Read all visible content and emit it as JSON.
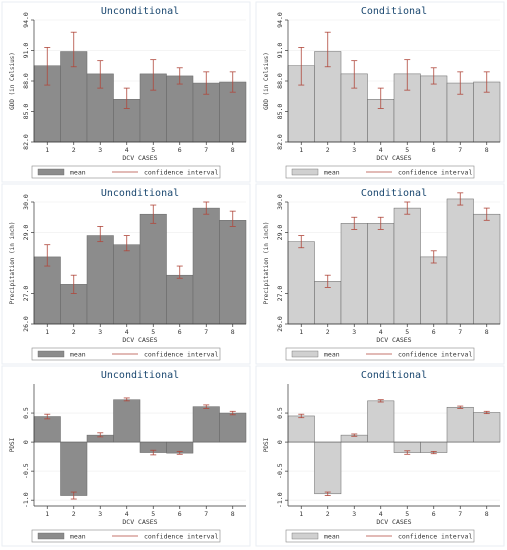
{
  "legend": {
    "mean_label": "mean",
    "ci_label": "confidence interval"
  },
  "colors": {
    "unconditional_bar": "#8c8c8c",
    "conditional_bar": "#d0d0d0",
    "ci": "#b0483c",
    "title": "#1a476f"
  },
  "chart_data": [
    {
      "type": "bar",
      "title": "Unconditional",
      "xlabel": "DCV CASES",
      "ylabel": "GDD (in Celsius)",
      "categories": [
        "1",
        "2",
        "3",
        "4",
        "5",
        "6",
        "7",
        "8"
      ],
      "values": [
        89.5,
        90.9,
        88.7,
        86.2,
        88.7,
        88.5,
        87.8,
        87.9
      ],
      "ci_low": [
        87.6,
        89.4,
        87.3,
        85.3,
        87.1,
        87.7,
        86.7,
        86.9
      ],
      "ci_high": [
        91.3,
        92.8,
        90.0,
        87.3,
        90.1,
        89.3,
        88.9,
        88.9
      ],
      "ylim": [
        82.0,
        94.0
      ],
      "yticks": [
        "94.0",
        "91.0",
        "88.0",
        "85.0",
        "82.0"
      ],
      "ytick_values": [
        94,
        91,
        88,
        85,
        82
      ]
    },
    {
      "type": "bar",
      "title": "Conditional",
      "xlabel": "DCV CASES",
      "ylabel": "GDD (in Celsius)",
      "categories": [
        "1",
        "2",
        "3",
        "4",
        "5",
        "6",
        "7",
        "8"
      ],
      "values": [
        89.5,
        90.9,
        88.7,
        86.2,
        88.7,
        88.5,
        87.8,
        87.9
      ],
      "ci_low": [
        87.6,
        89.4,
        87.3,
        85.3,
        87.1,
        87.7,
        86.7,
        86.9
      ],
      "ci_high": [
        91.3,
        92.8,
        90.0,
        87.3,
        90.1,
        89.3,
        88.9,
        88.9
      ],
      "ylim": [
        82.0,
        94.0
      ],
      "yticks": [
        "94.0",
        "91.0",
        "88.0",
        "85.0",
        "82.0"
      ],
      "ytick_values": [
        94,
        91,
        88,
        85,
        82
      ]
    },
    {
      "type": "bar",
      "title": "Unconditional",
      "xlabel": "DCV CASES",
      "ylabel": "Precipitation (in inch)",
      "categories": [
        "1",
        "2",
        "3",
        "4",
        "5",
        "6",
        "7",
        "8"
      ],
      "values": [
        28.2,
        27.3,
        28.9,
        28.6,
        29.6,
        27.6,
        29.8,
        29.4
      ],
      "ci_low": [
        27.9,
        27.0,
        28.7,
        28.4,
        29.3,
        27.5,
        29.6,
        29.2
      ],
      "ci_high": [
        28.6,
        27.6,
        29.2,
        28.9,
        29.9,
        27.9,
        30.0,
        29.7
      ],
      "ylim": [
        26.0,
        30.0
      ],
      "yticks": [
        "30.0",
        "29.0",
        "27.0",
        "26.0"
      ],
      "ytick_values": [
        30,
        29,
        27,
        26
      ]
    },
    {
      "type": "bar",
      "title": "Conditional",
      "xlabel": "DCV CASES",
      "ylabel": "Precipitation (in inch)",
      "categories": [
        "1",
        "2",
        "3",
        "4",
        "5",
        "6",
        "7",
        "8"
      ],
      "values": [
        28.7,
        27.4,
        29.3,
        29.3,
        29.8,
        28.2,
        30.1,
        29.6
      ],
      "ci_low": [
        28.5,
        27.2,
        29.1,
        29.1,
        29.6,
        28.0,
        29.9,
        29.4
      ],
      "ci_high": [
        28.9,
        27.6,
        29.5,
        29.5,
        30.0,
        28.4,
        30.3,
        29.8
      ],
      "ylim": [
        26.0,
        30.0
      ],
      "yticks": [
        "30.0",
        "29.0",
        "27.0",
        "26.0"
      ],
      "ytick_values": [
        30,
        29,
        27,
        26
      ]
    },
    {
      "type": "bar",
      "title": "Unconditional",
      "xlabel": "DCV CASES",
      "ylabel": "PDSI",
      "categories": [
        "1",
        "2",
        "3",
        "4",
        "5",
        "6",
        "7",
        "8"
      ],
      "values": [
        0.44,
        -0.92,
        0.12,
        0.73,
        -0.18,
        -0.19,
        0.61,
        0.5
      ],
      "ci_low": [
        0.4,
        -0.98,
        0.09,
        0.71,
        -0.22,
        -0.21,
        0.58,
        0.47
      ],
      "ci_high": [
        0.48,
        -0.86,
        0.16,
        0.76,
        -0.14,
        -0.16,
        0.64,
        0.53
      ],
      "ylim": [
        -1.1,
        1.0
      ],
      "yticks": [
        "0.5",
        "0",
        "-0.5",
        "-1.0"
      ],
      "ytick_values": [
        0.5,
        0,
        -0.5,
        -1.0
      ]
    },
    {
      "type": "bar",
      "title": "Conditional",
      "xlabel": "DCV CASES",
      "ylabel": "PDSI",
      "categories": [
        "1",
        "2",
        "3",
        "4",
        "5",
        "6",
        "7",
        "8"
      ],
      "values": [
        0.45,
        -0.89,
        0.12,
        0.71,
        -0.18,
        -0.18,
        0.6,
        0.51
      ],
      "ci_low": [
        0.42,
        -0.92,
        0.1,
        0.69,
        -0.21,
        -0.2,
        0.58,
        0.49
      ],
      "ci_high": [
        0.48,
        -0.86,
        0.14,
        0.73,
        -0.15,
        -0.16,
        0.62,
        0.53
      ],
      "ylim": [
        -1.1,
        1.0
      ],
      "yticks": [
        "0.5",
        "0",
        "-0.5",
        "-1.0"
      ],
      "ytick_values": [
        0.5,
        0,
        -0.5,
        -1.0
      ]
    }
  ]
}
